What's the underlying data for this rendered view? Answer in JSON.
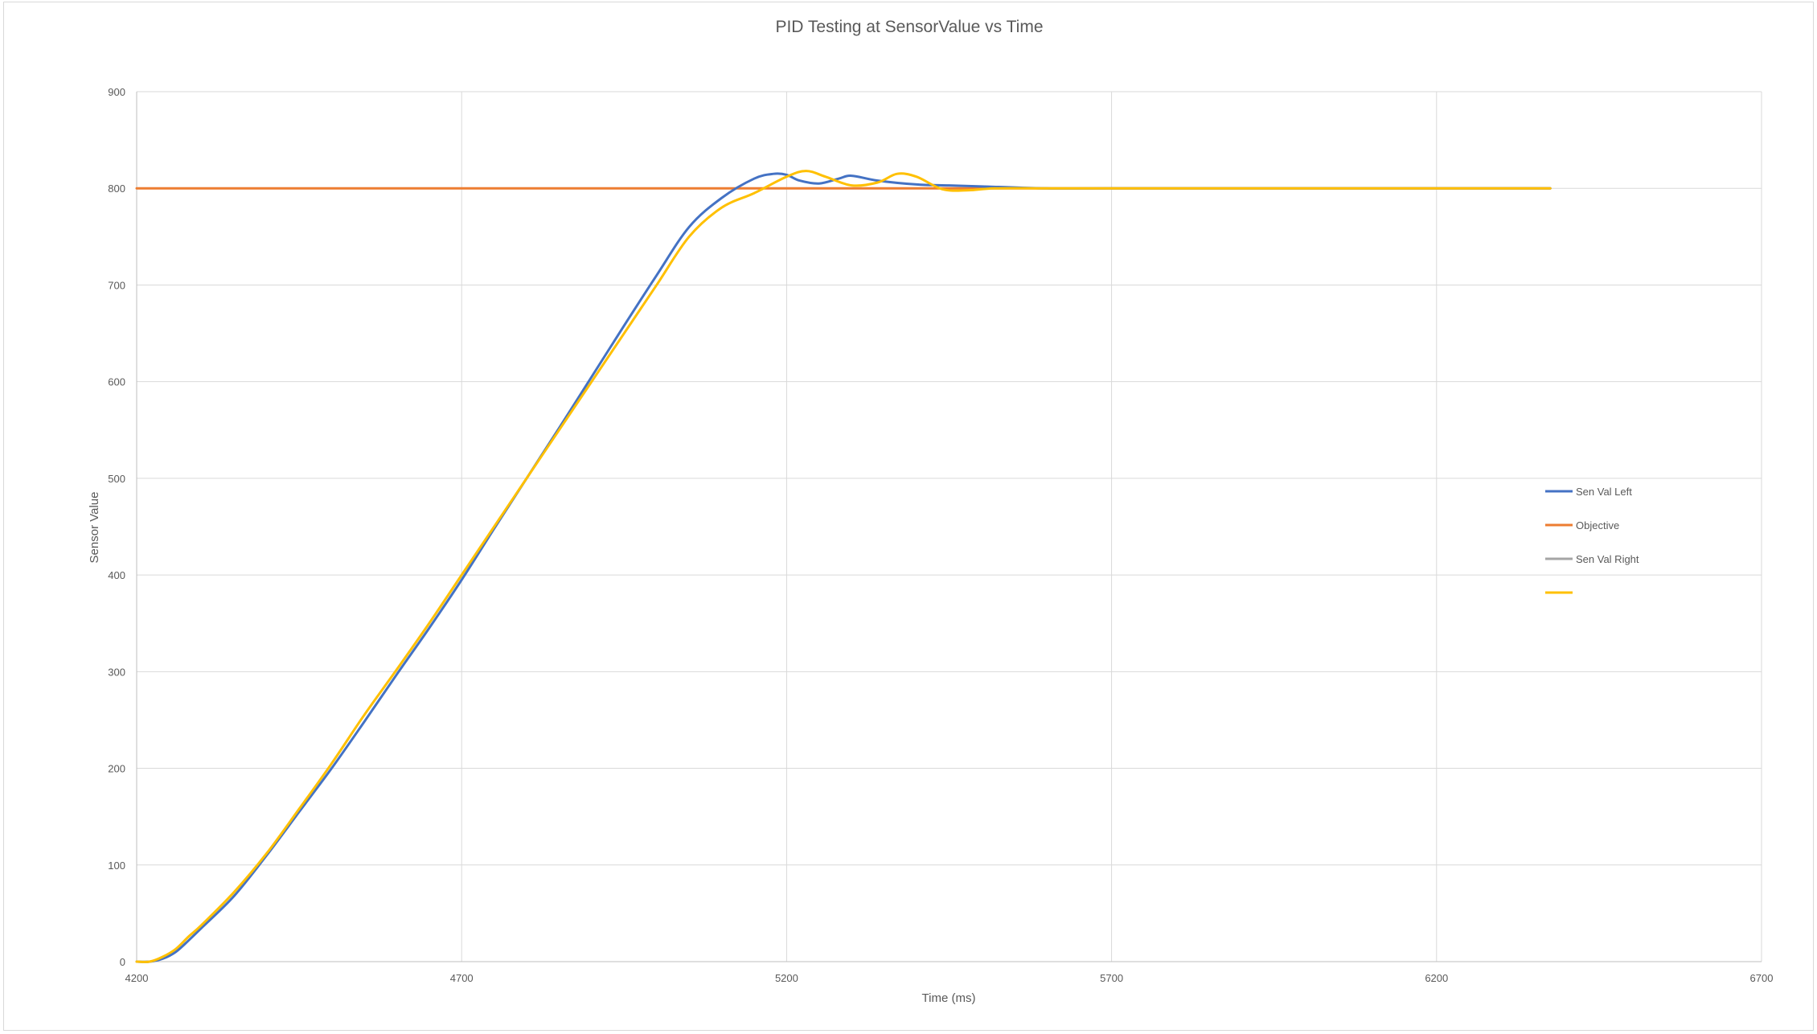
{
  "chart_data": {
    "type": "line",
    "title": "PID Testing at SensorValue vs Time",
    "xlabel": "Time (ms)",
    "ylabel": "Sensor Value",
    "xlim": [
      4200,
      6700
    ],
    "ylim": [
      0,
      900
    ],
    "xticks": [
      4200,
      4700,
      5200,
      5700,
      6200,
      6700
    ],
    "yticks": [
      0,
      100,
      200,
      300,
      400,
      500,
      600,
      700,
      800,
      900
    ],
    "grid": true,
    "legend_position": "right",
    "series": [
      {
        "name": "Sen Val Left",
        "color": "#4472C4",
        "x": [
          4200,
          4220,
          4240,
          4260,
          4280,
          4300,
          4350,
          4400,
          4450,
          4500,
          4550,
          4600,
          4650,
          4700,
          4750,
          4800,
          4850,
          4900,
          4950,
          5000,
          5050,
          5100,
          5150,
          5180,
          5200,
          5220,
          5250,
          5280,
          5300,
          5340,
          5400,
          5450,
          5500,
          5600,
          5700,
          6000,
          6300,
          6375
        ],
        "values": [
          0,
          0,
          3,
          10,
          22,
          35,
          68,
          110,
          155,
          200,
          248,
          297,
          345,
          395,
          448,
          500,
          552,
          605,
          658,
          710,
          760,
          790,
          810,
          815,
          814,
          808,
          805,
          810,
          813,
          808,
          804,
          803,
          802,
          800,
          800,
          800,
          800,
          800
        ]
      },
      {
        "name": "Objective",
        "color": "#ED7D31",
        "x": [
          4200,
          6375
        ],
        "values": [
          800,
          800
        ]
      },
      {
        "name": "Sen Val Right",
        "color": "#A5A5A5",
        "x": [],
        "values": []
      },
      {
        "name": "",
        "color": "#FFC000",
        "x": [
          4200,
          4220,
          4240,
          4260,
          4280,
          4300,
          4350,
          4400,
          4450,
          4500,
          4550,
          4600,
          4650,
          4700,
          4750,
          4800,
          4850,
          4900,
          4950,
          5000,
          5050,
          5100,
          5150,
          5200,
          5230,
          5260,
          5300,
          5340,
          5370,
          5400,
          5440,
          5480,
          5520,
          5600,
          5700,
          6000,
          6300,
          6375
        ],
        "values": [
          0,
          0,
          5,
          13,
          26,
          38,
          72,
          112,
          158,
          205,
          255,
          302,
          350,
          400,
          450,
          500,
          550,
          600,
          650,
          700,
          750,
          780,
          795,
          812,
          818,
          812,
          803,
          806,
          815,
          812,
          799,
          798,
          800,
          800,
          800,
          800,
          800,
          800
        ]
      }
    ]
  }
}
